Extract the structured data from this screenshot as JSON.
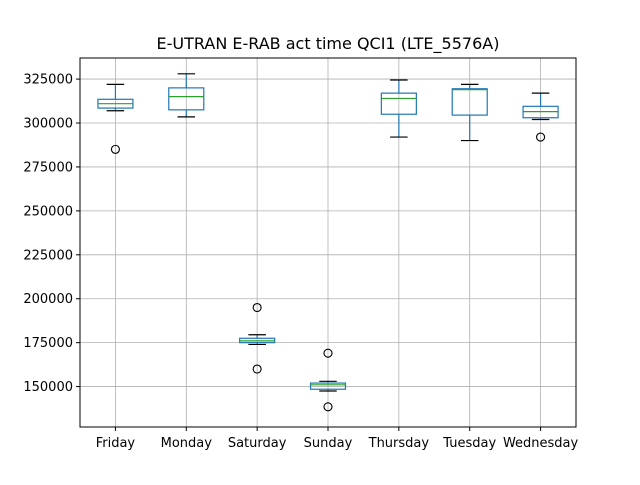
{
  "chart_data": {
    "type": "box",
    "title": "E-UTRAN E-RAB act time QCI1 (LTE_5576A)",
    "xlabel": "",
    "ylabel": "",
    "categories": [
      "Friday",
      "Monday",
      "Saturday",
      "Sunday",
      "Thursday",
      "Tuesday",
      "Wednesday"
    ],
    "yticks": [
      150000,
      175000,
      200000,
      225000,
      250000,
      275000,
      300000,
      325000
    ],
    "ylim": [
      127000,
      337000
    ],
    "grid": true,
    "boxes": [
      {
        "category": "Friday",
        "whisker_low": 307000,
        "q1": 308500,
        "median": 311000,
        "q3": 313500,
        "whisker_high": 322000,
        "outliers": [
          285000
        ]
      },
      {
        "category": "Monday",
        "whisker_low": 303500,
        "q1": 307500,
        "median": 315000,
        "q3": 320000,
        "whisker_high": 328000,
        "outliers": []
      },
      {
        "category": "Saturday",
        "whisker_low": 174000,
        "q1": 175000,
        "median": 176000,
        "q3": 177500,
        "whisker_high": 179500,
        "outliers": [
          160000,
          195000
        ]
      },
      {
        "category": "Sunday",
        "whisker_low": 147500,
        "q1": 148500,
        "median": 151000,
        "q3": 152000,
        "whisker_high": 153000,
        "outliers": [
          138500,
          169000
        ]
      },
      {
        "category": "Thursday",
        "whisker_low": 292000,
        "q1": 305000,
        "median": 314000,
        "q3": 317000,
        "whisker_high": 324500,
        "outliers": []
      },
      {
        "category": "Tuesday",
        "whisker_low": 290000,
        "q1": 304500,
        "median": 319000,
        "q3": 319500,
        "whisker_high": 322000,
        "outliers": []
      },
      {
        "category": "Wednesday",
        "whisker_low": 302000,
        "q1": 303000,
        "median": 306500,
        "q3": 309500,
        "whisker_high": 317000,
        "outliers": [
          292000
        ]
      }
    ],
    "colors": {
      "box": "#1f77b4",
      "median": "#2ca02c",
      "whisker": "#000000",
      "grid": "#b0b0b0",
      "axes": "#000000"
    }
  }
}
